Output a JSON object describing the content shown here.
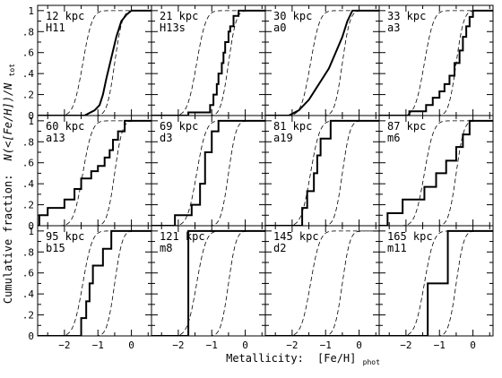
{
  "chart_data": {
    "type": "line",
    "layout": "4x3-grid-step-cdf",
    "xlabel": "Metallicity:",
    "xlabel_symbol": "[Fe/H]",
    "xlabel_sub": "phot",
    "ylabel": "Cumulative fraction:",
    "ylabel_symbol": "N(<[Fe/H])/N",
    "ylabel_sub": "tot",
    "xlim": [
      -2.8,
      0.6
    ],
    "ylim": [
      0,
      1.05
    ],
    "xticks": [
      -2,
      -1,
      0
    ],
    "xtick_labels": [
      "−2",
      "−1",
      "0"
    ],
    "yticks": [
      0,
      0.2,
      0.4,
      0.6,
      0.8,
      1
    ],
    "ytick_labels": [
      "0",
      ".2",
      ".4",
      ".6",
      ".8",
      "1"
    ],
    "reference_curves": [
      {
        "style": "dashed",
        "center": -1.45,
        "width": 0.22
      },
      {
        "style": "dashed",
        "center": -0.5,
        "width": 0.18
      }
    ],
    "panels": [
      {
        "distance": "12 kpc",
        "name": "H11",
        "curve": "smooth",
        "x": [
          -2.8,
          -1.4,
          -1.1,
          -0.95,
          -0.85,
          -0.75,
          -0.6,
          -0.45,
          -0.3,
          -0.15,
          0.0,
          0.6
        ],
        "y": [
          0,
          0,
          0.05,
          0.1,
          0.2,
          0.35,
          0.55,
          0.75,
          0.9,
          0.96,
          1.0,
          1.0
        ]
      },
      {
        "distance": "21 kpc",
        "name": "H13s",
        "x": [
          -1.7,
          -1.05,
          -0.95,
          -0.85,
          -0.8,
          -0.7,
          -0.65,
          -0.6,
          -0.5,
          -0.45,
          -0.35,
          -0.2
        ],
        "y": [
          0.03,
          0.1,
          0.2,
          0.3,
          0.4,
          0.5,
          0.6,
          0.7,
          0.8,
          0.85,
          0.95,
          1.0
        ]
      },
      {
        "distance": "30 kpc",
        "name": "a0",
        "curve": "smooth",
        "x": [
          -2.8,
          -2.1,
          -1.8,
          -1.5,
          -1.3,
          -1.1,
          -0.9,
          -0.7,
          -0.5,
          -0.35,
          -0.2,
          0.6
        ],
        "y": [
          0,
          0,
          0.05,
          0.15,
          0.25,
          0.35,
          0.45,
          0.6,
          0.75,
          0.9,
          1.0,
          1.0
        ]
      },
      {
        "distance": "33 kpc",
        "name": "a3",
        "x": [
          -1.9,
          -1.4,
          -1.2,
          -1.0,
          -0.85,
          -0.7,
          -0.55,
          -0.4,
          -0.3,
          -0.2,
          -0.1,
          0.0
        ],
        "y": [
          0.04,
          0.1,
          0.17,
          0.23,
          0.3,
          0.38,
          0.5,
          0.62,
          0.75,
          0.85,
          0.94,
          1.0
        ]
      },
      {
        "distance": "60 kpc",
        "name": "a13",
        "x": [
          -2.75,
          -2.5,
          -2.0,
          -1.7,
          -1.5,
          -1.2,
          -1.0,
          -0.8,
          -0.65,
          -0.55,
          -0.4,
          -0.2
        ],
        "y": [
          0.1,
          0.17,
          0.25,
          0.35,
          0.45,
          0.52,
          0.57,
          0.65,
          0.72,
          0.82,
          0.9,
          1.0
        ]
      },
      {
        "distance": "69 kpc",
        "name": "d3",
        "x": [
          -2.1,
          -1.6,
          -1.35,
          -1.2,
          -1.0,
          -0.8
        ],
        "y": [
          0.1,
          0.2,
          0.4,
          0.7,
          0.9,
          1.0
        ]
      },
      {
        "distance": "81 kpc",
        "name": "a19",
        "x": [
          -1.7,
          -1.55,
          -1.35,
          -1.25,
          -1.15,
          -0.85
        ],
        "y": [
          0.17,
          0.33,
          0.5,
          0.67,
          0.83,
          1.0
        ]
      },
      {
        "distance": "87 kpc",
        "name": "m6",
        "x": [
          -2.55,
          -2.1,
          -1.45,
          -1.1,
          -0.8,
          -0.5,
          -0.3,
          -0.1
        ],
        "y": [
          0.12,
          0.25,
          0.37,
          0.5,
          0.62,
          0.75,
          0.87,
          1.0
        ]
      },
      {
        "distance": "95 kpc",
        "name": "b15",
        "x": [
          -1.5,
          -1.35,
          -1.25,
          -1.15,
          -0.85,
          -0.6
        ],
        "y": [
          0.17,
          0.33,
          0.5,
          0.67,
          0.83,
          1.0
        ]
      },
      {
        "distance": "121 kpc",
        "name": "m8",
        "x": [
          -1.7
        ],
        "y": [
          1.0
        ]
      },
      {
        "distance": "145 kpc",
        "name": "d2",
        "x": [],
        "y": []
      },
      {
        "distance": "165 kpc",
        "name": "m11",
        "x": [
          -1.35,
          -0.75
        ],
        "y": [
          0.5,
          1.0
        ]
      }
    ]
  }
}
